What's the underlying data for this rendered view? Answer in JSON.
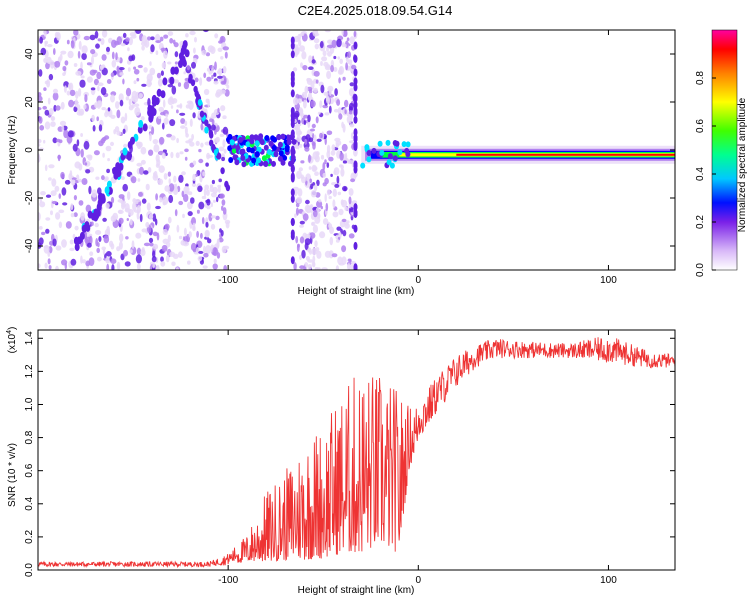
{
  "title": "C2E4.2025.018.09.54.G14",
  "chart_data": [
    {
      "type": "heatmap",
      "xlabel": "Height of straight line (km)",
      "ylabel": "Frequency (Hz)",
      "xlim": [
        -200,
        135
      ],
      "ylim": [
        -50,
        50
      ],
      "xticks": [
        -100,
        0,
        100
      ],
      "yticks": [
        -40,
        -20,
        0,
        20,
        40
      ],
      "colorbar": {
        "label": "Normalized spectral amplitude",
        "range": [
          0,
          1
        ],
        "ticks": [
          0.0,
          0.2,
          0.4,
          0.6,
          0.8
        ],
        "tick_labels": [
          "0.0",
          "0.2",
          "0.4",
          "0.6",
          "0.8"
        ]
      },
      "features": [
        {
          "name": "scatter-region",
          "x": [
            -200,
            -100
          ],
          "amplitude": 0.15
        },
        {
          "name": "band",
          "x": [
            -100,
            -65
          ],
          "y": [
            -5,
            5
          ],
          "amplitude": 0.35
        },
        {
          "name": "scatter-region",
          "x": [
            -65,
            -33
          ],
          "amplitude": 0.15
        },
        {
          "name": "tone",
          "x": [
            -30,
            135
          ],
          "y": -2,
          "amplitude": 0.9
        }
      ],
      "colors": [
        "#e8d8f8",
        "#b080f0",
        "#6020e0",
        "#0000ff",
        "#00e0ff",
        "#00ff40",
        "#ffff00",
        "#ff8000",
        "#ff0000"
      ]
    },
    {
      "type": "line",
      "xlabel": "Height of straight line (km)",
      "ylabel": "SNR (10 * v/v)",
      "scale_label": "(x10",
      "scale_exp": "4",
      "xlim": [
        -200,
        135
      ],
      "ylim": [
        0,
        1.45
      ],
      "xticks": [
        -100,
        0,
        100
      ],
      "yticks": [
        0.0,
        0.2,
        0.4,
        0.6,
        0.8,
        1.0,
        1.2,
        1.4
      ],
      "ytick_labels": [
        "0.0",
        "0.2",
        "0.4",
        "0.6",
        "0.8",
        "1.0",
        "1.2",
        "1.4"
      ],
      "color": "#ee3333",
      "envelope": {
        "x": [
          -200,
          -150,
          -110,
          -100,
          -90,
          -80,
          -70,
          -60,
          -50,
          -40,
          -30,
          -20,
          -10,
          -5,
          0,
          5,
          10,
          20,
          30,
          40,
          60,
          80,
          100,
          120,
          135
        ],
        "low": [
          0.02,
          0.02,
          0.02,
          0.03,
          0.05,
          0.05,
          0.06,
          0.06,
          0.07,
          0.1,
          0.1,
          0.15,
          0.1,
          0.6,
          0.78,
          0.85,
          0.95,
          1.1,
          1.22,
          1.28,
          1.28,
          1.28,
          1.25,
          1.22,
          1.22
        ],
        "high": [
          0.05,
          0.05,
          0.05,
          0.1,
          0.22,
          0.48,
          0.6,
          0.82,
          0.9,
          1.1,
          1.25,
          1.2,
          1.1,
          1.0,
          1.02,
          1.1,
          1.18,
          1.3,
          1.36,
          1.4,
          1.38,
          1.37,
          1.42,
          1.33,
          1.3
        ]
      }
    }
  ]
}
